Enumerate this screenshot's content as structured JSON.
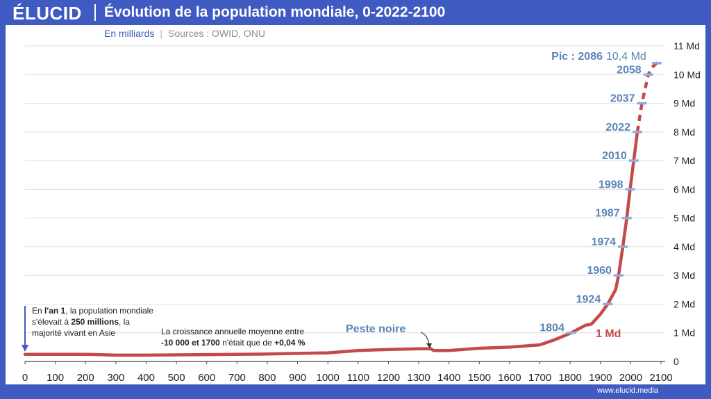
{
  "header": {
    "logo": "ÉLUCID",
    "title": "Évolution de la population mondiale, 0-2022-2100"
  },
  "subtitle": {
    "unit": "En milliards",
    "sources": "Sources : OWID, ONU"
  },
  "footer": {
    "site": "www.elucid.media"
  },
  "colors": {
    "brand": "#3f5bc2",
    "line": "#c44a4a",
    "milestone": "#5b84b8",
    "marker": "#8aaee0"
  },
  "chart_data": {
    "type": "line",
    "title": "Évolution de la population mondiale, 0-2022-2100",
    "xlabel": "",
    "ylabel": "En milliards",
    "xlim": [
      0,
      2100
    ],
    "ylim": [
      0,
      11
    ],
    "grid": true,
    "x_ticks": [
      "0",
      "100",
      "200",
      "300",
      "400",
      "500",
      "600",
      "700",
      "800",
      "900",
      "1000",
      "1100",
      "1200",
      "1300",
      "1400",
      "1500",
      "1600",
      "1700",
      "1800",
      "1900",
      "2000",
      "2100"
    ],
    "y_ticks": [
      "0",
      "1 Md",
      "2 Md",
      "3 Md",
      "4 Md",
      "5 Md",
      "6 Md",
      "7 Md",
      "8 Md",
      "9 Md",
      "10 Md",
      "11 Md"
    ],
    "series": [
      {
        "style": "solid",
        "x": [
          0,
          100,
          200,
          300,
          400,
          500,
          600,
          700,
          800,
          900,
          1000,
          1100,
          1200,
          1300,
          1340,
          1350,
          1400,
          1500,
          1600,
          1700,
          1750,
          1800,
          1850,
          1870,
          1900,
          1924,
          1950,
          1960,
          1974,
          1987,
          1998,
          2010,
          2022
        ],
        "y": [
          0.25,
          0.25,
          0.25,
          0.22,
          0.22,
          0.23,
          0.24,
          0.25,
          0.26,
          0.28,
          0.3,
          0.38,
          0.42,
          0.44,
          0.44,
          0.38,
          0.38,
          0.46,
          0.5,
          0.58,
          0.76,
          0.98,
          1.26,
          1.3,
          1.65,
          2.0,
          2.5,
          3.0,
          4.0,
          5.0,
          6.0,
          7.0,
          8.0
        ]
      },
      {
        "style": "dashed",
        "x": [
          2022,
          2037,
          2058,
          2070,
          2086,
          2100
        ],
        "y": [
          8.0,
          9.0,
          10.0,
          10.25,
          10.4,
          10.4
        ]
      }
    ],
    "milestones": [
      {
        "year": 1804,
        "value": 1,
        "label": "1804"
      },
      {
        "year": 1924,
        "value": 2,
        "label": "1924"
      },
      {
        "year": 1960,
        "value": 3,
        "label": "1960"
      },
      {
        "year": 1974,
        "value": 4,
        "label": "1974"
      },
      {
        "year": 1987,
        "value": 5,
        "label": "1987"
      },
      {
        "year": 1998,
        "value": 6,
        "label": "1998"
      },
      {
        "year": 2010,
        "value": 7,
        "label": "2010"
      },
      {
        "year": 2022,
        "value": 8,
        "label": "2022"
      },
      {
        "year": 2037,
        "value": 9,
        "label": "2037"
      },
      {
        "year": 2058,
        "value": 10,
        "label": "2058"
      },
      {
        "year": 2086,
        "value": 10.4,
        "label": "Pic : 2086"
      }
    ],
    "annotations": {
      "peak_value": "10,4 Md",
      "one_billion": "1 Md",
      "black_death": "Peste noire",
      "year1_line1_a": "En ",
      "year1_line1_b": "l'an 1",
      "year1_line1_c": ", la population mondiale",
      "year1_line2_a": "s'élevait à ",
      "year1_line2_b": "250 millions",
      "year1_line2_c": ", la",
      "year1_line3": "majorité vivant en Asie",
      "growth_line1": "La croissance annuelle moyenne entre",
      "growth_line2_a": "-10 000 et 1700",
      "growth_line2_b": " n'était que de ",
      "growth_line2_c": "+0,04 %"
    }
  }
}
